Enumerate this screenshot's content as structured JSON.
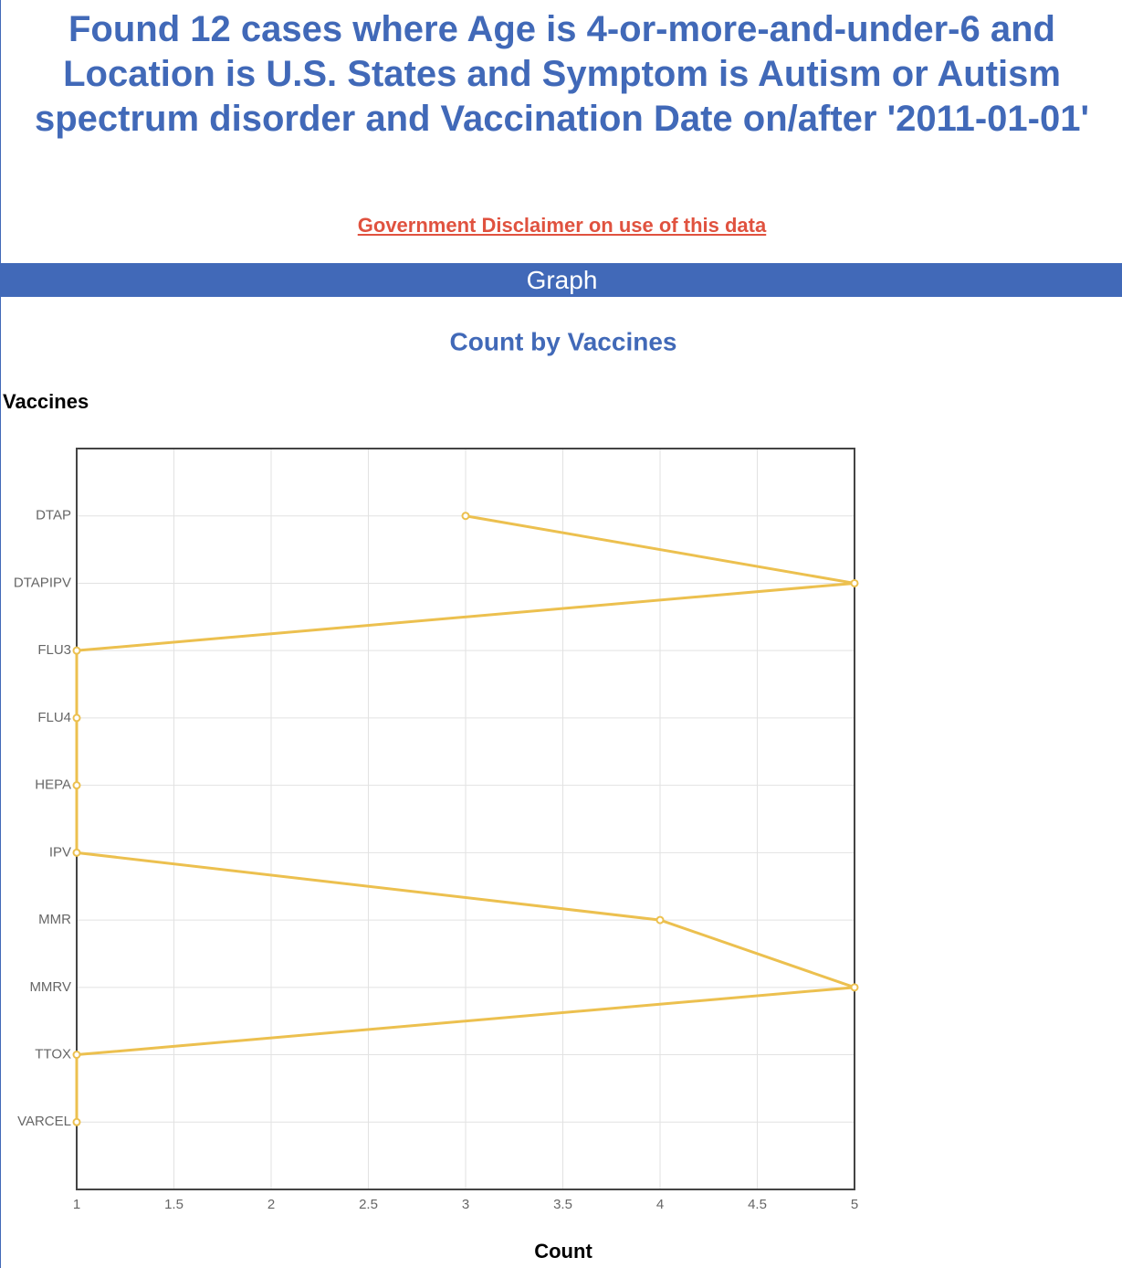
{
  "page": {
    "title": "Found 12 cases where Age is 4-or-more-and-under-6 and Location is U.S. States and Symptom is Autism or Autism spectrum disorder and Vaccination Date on/after '2011-01-01'",
    "disclaimer": "Government Disclaimer on use of this data",
    "section": "Graph"
  },
  "chart_data": {
    "type": "line",
    "orientation": "horizontal",
    "title": "Count by Vaccines",
    "y_label": "Vaccines",
    "x_label": "Count",
    "categories": [
      "DTAP",
      "DTAPIPV",
      "FLU3",
      "FLU4",
      "HEPA",
      "IPV",
      "MMR",
      "MMRV",
      "TTOX",
      "VARCEL"
    ],
    "values": [
      3,
      5,
      1,
      1,
      1,
      1,
      4,
      5,
      1,
      1
    ],
    "color": "#ecc04f",
    "xlim": [
      1,
      5
    ],
    "xticks": [
      1,
      1.5,
      2,
      2.5,
      3,
      3.5,
      4,
      4.5,
      5
    ],
    "grid": true
  }
}
